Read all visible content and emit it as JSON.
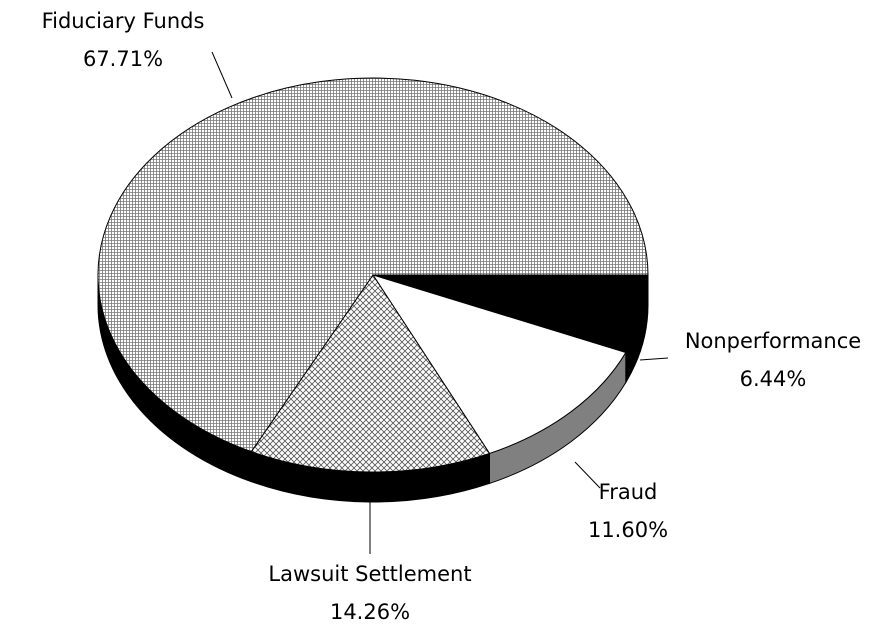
{
  "chart_data": {
    "type": "pie3d",
    "categories": [
      "Nonperformance",
      "Fraud",
      "Lawsuit Settlement",
      "Fiduciary Funds"
    ],
    "values": [
      6.44,
      11.6,
      14.26,
      67.71
    ],
    "value_labels": [
      "6.44%",
      "11.60%",
      "14.26%",
      "67.71%"
    ],
    "colors": [
      "#000000",
      "#ffffff",
      "#c8c8c8",
      "#dcdcdc"
    ],
    "side_colors": [
      "#000000",
      "#808080",
      "#000000",
      "#000000"
    ]
  }
}
